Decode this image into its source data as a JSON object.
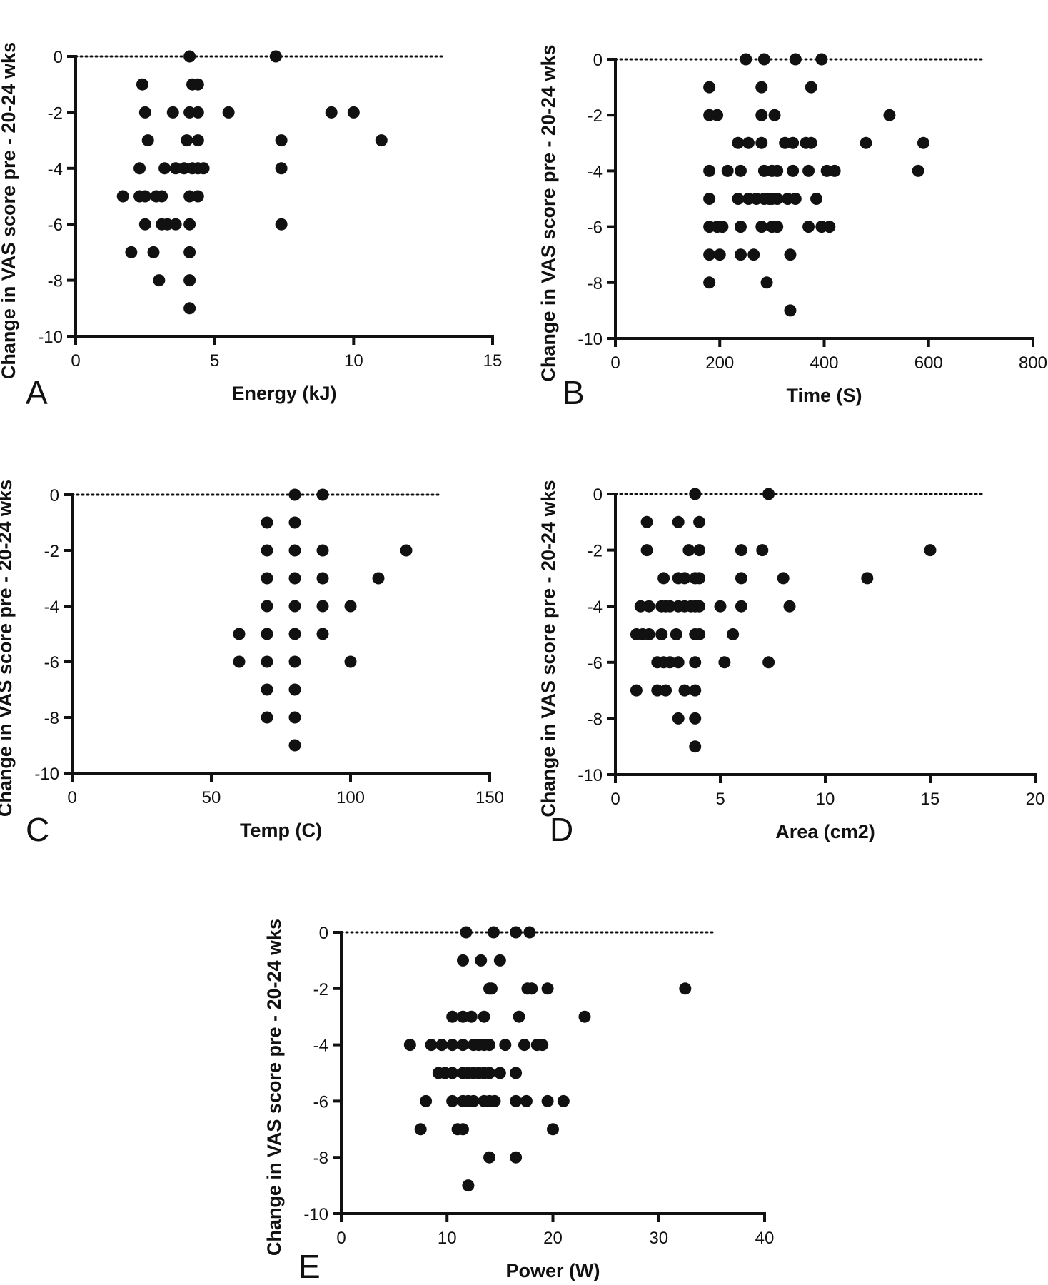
{
  "chart_data": [
    {
      "type": "scatter",
      "panel": "A",
      "xlabel": "Energy (kJ)",
      "ylabel": "Change in VAS score pre - 20-24 wks",
      "xlim": [
        0,
        15
      ],
      "ylim": [
        -10,
        0
      ],
      "xticks": [
        0,
        5,
        10,
        15
      ],
      "yticks": [
        0,
        -2,
        -4,
        -6,
        -8,
        -10
      ],
      "reference_line": 0,
      "points": [
        [
          4.1,
          0
        ],
        [
          7.2,
          0
        ],
        [
          2.4,
          -1
        ],
        [
          4.2,
          -1
        ],
        [
          4.4,
          -1
        ],
        [
          2.5,
          -2
        ],
        [
          3.5,
          -2
        ],
        [
          4.1,
          -2
        ],
        [
          4.4,
          -2
        ],
        [
          5.5,
          -2
        ],
        [
          9.2,
          -2
        ],
        [
          10.0,
          -2
        ],
        [
          2.6,
          -3
        ],
        [
          4.0,
          -3
        ],
        [
          4.4,
          -3
        ],
        [
          7.4,
          -3
        ],
        [
          11.0,
          -3
        ],
        [
          2.3,
          -4
        ],
        [
          3.2,
          -4
        ],
        [
          3.6,
          -4
        ],
        [
          3.9,
          -4
        ],
        [
          4.2,
          -4
        ],
        [
          4.4,
          -4
        ],
        [
          4.6,
          -4
        ],
        [
          7.4,
          -4
        ],
        [
          1.7,
          -5
        ],
        [
          2.3,
          -5
        ],
        [
          2.5,
          -5
        ],
        [
          2.9,
          -5
        ],
        [
          3.1,
          -5
        ],
        [
          4.1,
          -5
        ],
        [
          4.4,
          -5
        ],
        [
          2.5,
          -6
        ],
        [
          3.1,
          -6
        ],
        [
          3.3,
          -6
        ],
        [
          3.6,
          -6
        ],
        [
          4.1,
          -6
        ],
        [
          7.4,
          -6
        ],
        [
          2.0,
          -7
        ],
        [
          2.8,
          -7
        ],
        [
          4.1,
          -7
        ],
        [
          3.0,
          -8
        ],
        [
          4.1,
          -8
        ],
        [
          4.1,
          -9
        ]
      ]
    },
    {
      "type": "scatter",
      "panel": "B",
      "xlabel": "Time (S)",
      "ylabel": "Change in VAS score pre - 20-24 wks",
      "xlim": [
        0,
        800
      ],
      "ylim": [
        -10,
        0
      ],
      "xticks": [
        0,
        200,
        400,
        600,
        800
      ],
      "yticks": [
        0,
        -2,
        -4,
        -6,
        -8,
        -10
      ],
      "reference_line": 0,
      "points": [
        [
          250,
          0
        ],
        [
          285,
          0
        ],
        [
          345,
          0
        ],
        [
          395,
          0
        ],
        [
          180,
          -1
        ],
        [
          280,
          -1
        ],
        [
          375,
          -1
        ],
        [
          180,
          -2
        ],
        [
          195,
          -2
        ],
        [
          280,
          -2
        ],
        [
          305,
          -2
        ],
        [
          525,
          -2
        ],
        [
          235,
          -3
        ],
        [
          255,
          -3
        ],
        [
          280,
          -3
        ],
        [
          325,
          -3
        ],
        [
          340,
          -3
        ],
        [
          365,
          -3
        ],
        [
          375,
          -3
        ],
        [
          480,
          -3
        ],
        [
          590,
          -3
        ],
        [
          180,
          -4
        ],
        [
          215,
          -4
        ],
        [
          240,
          -4
        ],
        [
          285,
          -4
        ],
        [
          300,
          -4
        ],
        [
          310,
          -4
        ],
        [
          340,
          -4
        ],
        [
          370,
          -4
        ],
        [
          405,
          -4
        ],
        [
          420,
          -4
        ],
        [
          580,
          -4
        ],
        [
          180,
          -5
        ],
        [
          235,
          -5
        ],
        [
          255,
          -5
        ],
        [
          270,
          -5
        ],
        [
          285,
          -5
        ],
        [
          295,
          -5
        ],
        [
          300,
          -5
        ],
        [
          310,
          -5
        ],
        [
          330,
          -5
        ],
        [
          345,
          -5
        ],
        [
          385,
          -5
        ],
        [
          180,
          -6
        ],
        [
          195,
          -6
        ],
        [
          205,
          -6
        ],
        [
          240,
          -6
        ],
        [
          280,
          -6
        ],
        [
          300,
          -6
        ],
        [
          310,
          -6
        ],
        [
          370,
          -6
        ],
        [
          395,
          -6
        ],
        [
          410,
          -6
        ],
        [
          180,
          -7
        ],
        [
          200,
          -7
        ],
        [
          240,
          -7
        ],
        [
          265,
          -7
        ],
        [
          335,
          -7
        ],
        [
          180,
          -8
        ],
        [
          290,
          -8
        ],
        [
          335,
          -9
        ]
      ]
    },
    {
      "type": "scatter",
      "panel": "C",
      "xlabel": "Temp (C)",
      "ylabel": "Change in VAS score pre - 20-24 wks",
      "xlim": [
        0,
        150
      ],
      "ylim": [
        -10,
        0
      ],
      "xticks": [
        0,
        50,
        100,
        150
      ],
      "yticks": [
        0,
        -2,
        -4,
        -6,
        -8,
        -10
      ],
      "reference_line": 0,
      "points": [
        [
          80,
          0
        ],
        [
          90,
          0
        ],
        [
          70,
          -1
        ],
        [
          80,
          -1
        ],
        [
          70,
          -2
        ],
        [
          80,
          -2
        ],
        [
          90,
          -2
        ],
        [
          120,
          -2
        ],
        [
          70,
          -3
        ],
        [
          80,
          -3
        ],
        [
          90,
          -3
        ],
        [
          110,
          -3
        ],
        [
          70,
          -4
        ],
        [
          80,
          -4
        ],
        [
          90,
          -4
        ],
        [
          100,
          -4
        ],
        [
          60,
          -5
        ],
        [
          70,
          -5
        ],
        [
          80,
          -5
        ],
        [
          90,
          -5
        ],
        [
          60,
          -6
        ],
        [
          70,
          -6
        ],
        [
          80,
          -6
        ],
        [
          100,
          -6
        ],
        [
          70,
          -7
        ],
        [
          80,
          -7
        ],
        [
          70,
          -8
        ],
        [
          80,
          -8
        ],
        [
          80,
          -9
        ]
      ]
    },
    {
      "type": "scatter",
      "panel": "D",
      "xlabel": "Area (cm2)",
      "ylabel": "Change in VAS score pre - 20-24 wks",
      "xlim": [
        0,
        20
      ],
      "ylim": [
        -10,
        0
      ],
      "xticks": [
        0,
        5,
        10,
        15,
        20
      ],
      "yticks": [
        0,
        -2,
        -4,
        -6,
        -8,
        -10
      ],
      "reference_line": 0,
      "points": [
        [
          3.8,
          0
        ],
        [
          7.3,
          0
        ],
        [
          1.5,
          -1
        ],
        [
          3.0,
          -1
        ],
        [
          4.0,
          -1
        ],
        [
          1.5,
          -2
        ],
        [
          3.5,
          -2
        ],
        [
          4.0,
          -2
        ],
        [
          6.0,
          -2
        ],
        [
          7.0,
          -2
        ],
        [
          15.0,
          -2
        ],
        [
          2.3,
          -3
        ],
        [
          3.0,
          -3
        ],
        [
          3.3,
          -3
        ],
        [
          3.8,
          -3
        ],
        [
          4.0,
          -3
        ],
        [
          6.0,
          -3
        ],
        [
          8.0,
          -3
        ],
        [
          12.0,
          -3
        ],
        [
          1.2,
          -4
        ],
        [
          1.6,
          -4
        ],
        [
          2.2,
          -4
        ],
        [
          2.4,
          -4
        ],
        [
          2.6,
          -4
        ],
        [
          3.0,
          -4
        ],
        [
          3.3,
          -4
        ],
        [
          3.6,
          -4
        ],
        [
          3.8,
          -4
        ],
        [
          4.0,
          -4
        ],
        [
          5.0,
          -4
        ],
        [
          6.0,
          -4
        ],
        [
          8.3,
          -4
        ],
        [
          1.0,
          -5
        ],
        [
          1.3,
          -5
        ],
        [
          1.6,
          -5
        ],
        [
          2.2,
          -5
        ],
        [
          2.9,
          -5
        ],
        [
          3.8,
          -5
        ],
        [
          4.0,
          -5
        ],
        [
          5.6,
          -5
        ],
        [
          2.0,
          -6
        ],
        [
          2.3,
          -6
        ],
        [
          2.6,
          -6
        ],
        [
          3.0,
          -6
        ],
        [
          3.8,
          -6
        ],
        [
          5.2,
          -6
        ],
        [
          7.3,
          -6
        ],
        [
          1.0,
          -7
        ],
        [
          2.0,
          -7
        ],
        [
          2.4,
          -7
        ],
        [
          3.3,
          -7
        ],
        [
          3.8,
          -7
        ],
        [
          3.0,
          -8
        ],
        [
          3.8,
          -8
        ],
        [
          3.8,
          -9
        ]
      ]
    },
    {
      "type": "scatter",
      "panel": "E",
      "xlabel": "Power (W)",
      "ylabel": "Change in VAS score pre - 20-24 wks",
      "xlim": [
        0,
        40
      ],
      "ylim": [
        -10,
        0
      ],
      "xticks": [
        0,
        10,
        20,
        30,
        40
      ],
      "yticks": [
        0,
        -2,
        -4,
        -6,
        -8,
        -10
      ],
      "reference_line": 0,
      "points": [
        [
          11.8,
          0
        ],
        [
          14.4,
          0
        ],
        [
          16.5,
          0
        ],
        [
          17.8,
          0
        ],
        [
          11.5,
          -1
        ],
        [
          13.2,
          -1
        ],
        [
          15.0,
          -1
        ],
        [
          14.0,
          -2
        ],
        [
          14.2,
          -2
        ],
        [
          17.6,
          -2
        ],
        [
          18.0,
          -2
        ],
        [
          19.5,
          -2
        ],
        [
          32.5,
          -2
        ],
        [
          10.5,
          -3
        ],
        [
          11.5,
          -3
        ],
        [
          12.3,
          -3
        ],
        [
          13.5,
          -3
        ],
        [
          16.8,
          -3
        ],
        [
          23.0,
          -3
        ],
        [
          6.5,
          -4
        ],
        [
          8.5,
          -4
        ],
        [
          9.5,
          -4
        ],
        [
          10.5,
          -4
        ],
        [
          11.5,
          -4
        ],
        [
          12.5,
          -4
        ],
        [
          13.0,
          -4
        ],
        [
          13.5,
          -4
        ],
        [
          14.0,
          -4
        ],
        [
          15.5,
          -4
        ],
        [
          17.3,
          -4
        ],
        [
          18.5,
          -4
        ],
        [
          19.0,
          -4
        ],
        [
          9.2,
          -5
        ],
        [
          9.8,
          -5
        ],
        [
          10.5,
          -5
        ],
        [
          11.5,
          -5
        ],
        [
          12.0,
          -5
        ],
        [
          12.5,
          -5
        ],
        [
          13.0,
          -5
        ],
        [
          13.5,
          -5
        ],
        [
          14.0,
          -5
        ],
        [
          15.0,
          -5
        ],
        [
          16.5,
          -5
        ],
        [
          8.0,
          -6
        ],
        [
          10.5,
          -6
        ],
        [
          11.5,
          -6
        ],
        [
          12.0,
          -6
        ],
        [
          12.5,
          -6
        ],
        [
          13.5,
          -6
        ],
        [
          14.0,
          -6
        ],
        [
          14.5,
          -6
        ],
        [
          16.5,
          -6
        ],
        [
          17.5,
          -6
        ],
        [
          19.5,
          -6
        ],
        [
          21.0,
          -6
        ],
        [
          7.5,
          -7
        ],
        [
          11.0,
          -7
        ],
        [
          11.5,
          -7
        ],
        [
          20.0,
          -7
        ],
        [
          14.0,
          -8
        ],
        [
          16.5,
          -8
        ],
        [
          12.0,
          -9
        ]
      ]
    }
  ]
}
